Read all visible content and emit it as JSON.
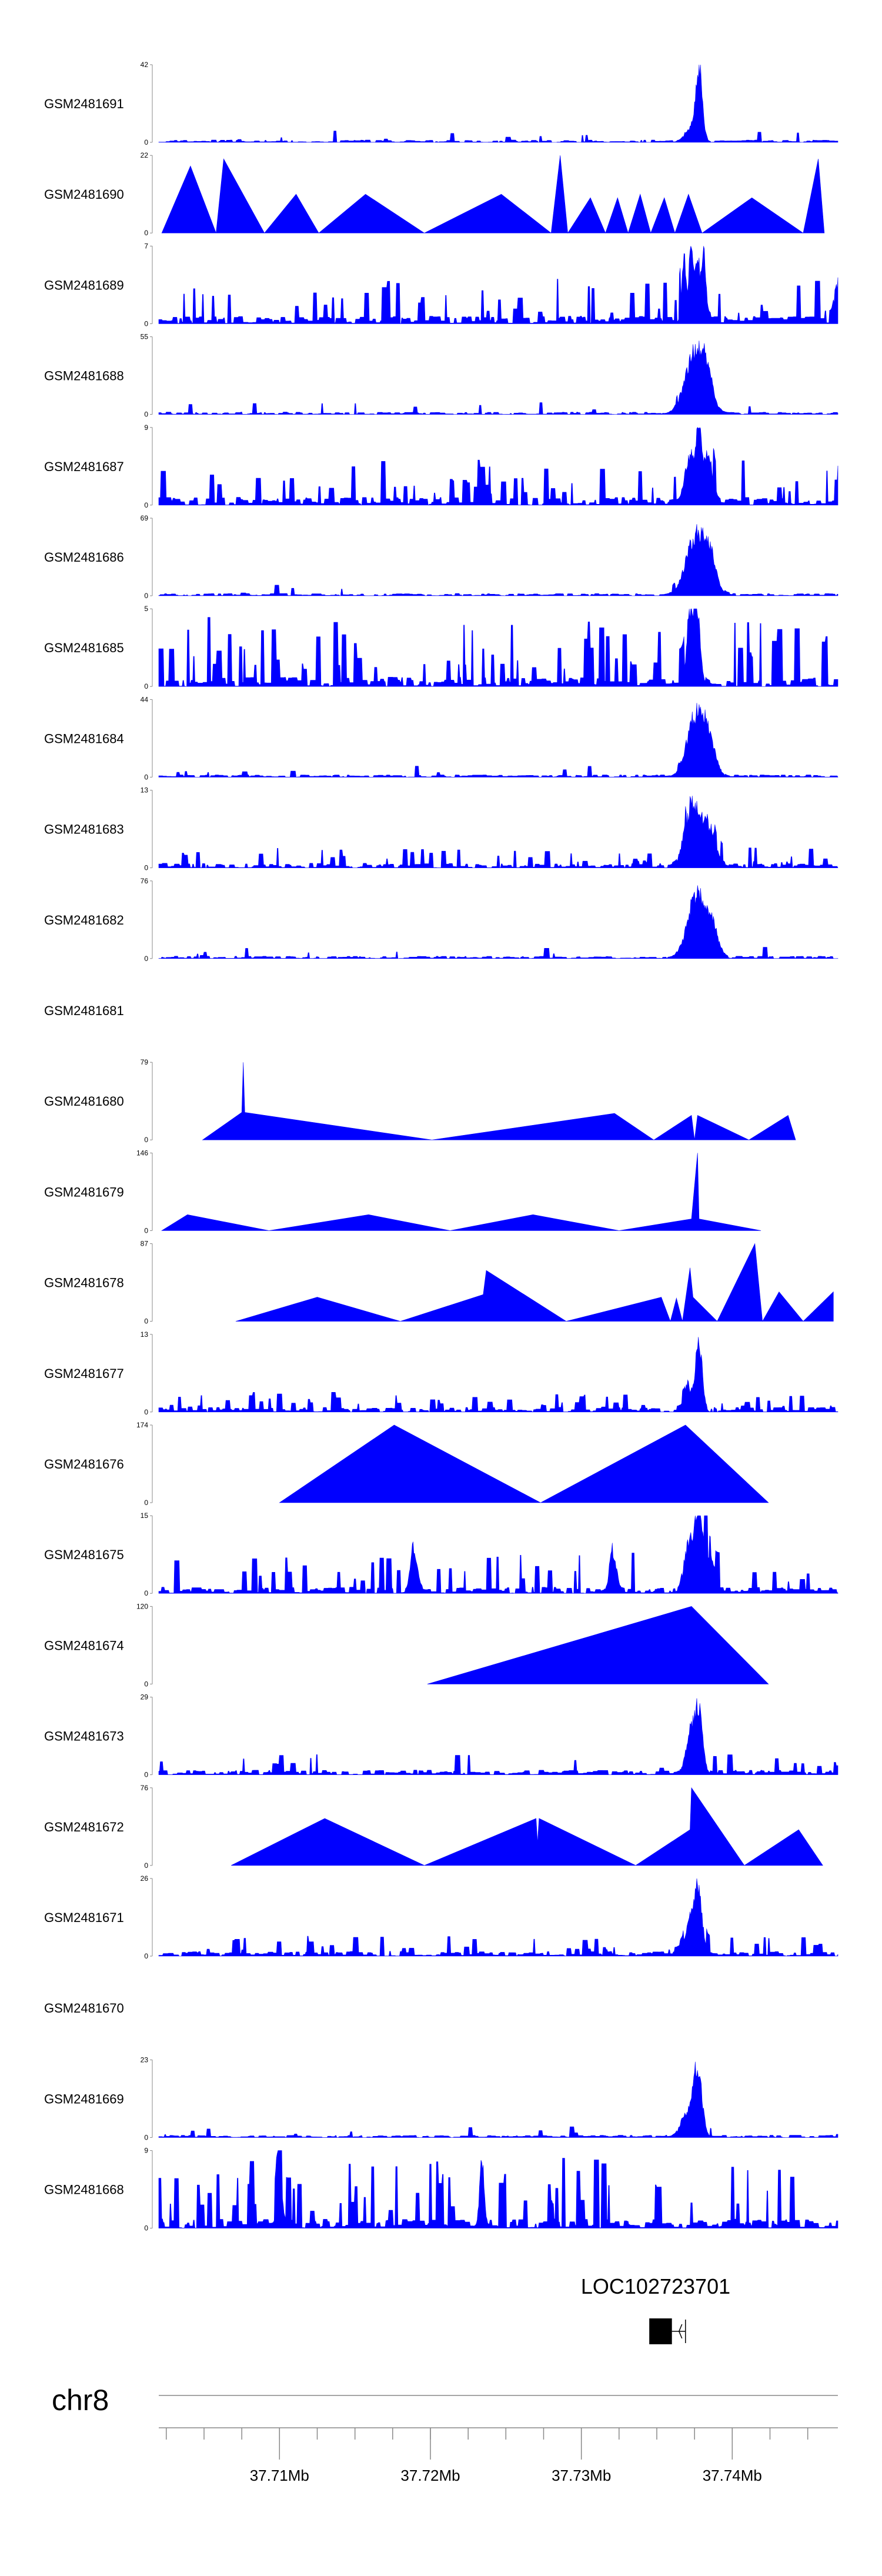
{
  "chart_data": {
    "type": "area",
    "genome_range": [
      37.702,
      37.747
    ],
    "colors": {
      "signal": "#0000ff",
      "axis": "#888888",
      "text": "#000000",
      "gene": "#000000"
    },
    "tracks": [
      {
        "name": "GSM2481691",
        "ymax": 42,
        "pattern": "sparse-low",
        "seed": 11,
        "peaks": [
          [
            37.7378,
            1.0,
            0.0003
          ],
          [
            37.7373,
            0.2,
            0.0006
          ]
        ]
      },
      {
        "name": "GSM2481690",
        "ymax": 22,
        "pattern": "tri",
        "seed": 12,
        "points": [
          [
            37.7022,
            0
          ],
          [
            37.7041,
            19
          ],
          [
            37.7058,
            0
          ],
          [
            37.7063,
            21
          ],
          [
            37.709,
            0
          ],
          [
            37.7111,
            11
          ],
          [
            37.7126,
            0
          ],
          [
            37.7157,
            11
          ],
          [
            37.7196,
            0
          ],
          [
            37.7247,
            11
          ],
          [
            37.728,
            0
          ],
          [
            37.7286,
            22
          ],
          [
            37.7291,
            0
          ],
          [
            37.7306,
            10
          ],
          [
            37.7316,
            0
          ],
          [
            37.7324,
            10
          ],
          [
            37.7331,
            0
          ],
          [
            37.7339,
            11
          ],
          [
            37.7346,
            0
          ],
          [
            37.7355,
            10
          ],
          [
            37.7362,
            0
          ],
          [
            37.7371,
            11
          ],
          [
            37.738,
            0
          ],
          [
            37.7413,
            10
          ],
          [
            37.7447,
            0
          ],
          [
            37.7457,
            21
          ],
          [
            37.7461,
            0
          ]
        ]
      },
      {
        "name": "GSM2481689",
        "ymax": 7,
        "pattern": "dense-mid",
        "seed": 13,
        "peaks": [
          [
            37.7373,
            7.0,
            0.0002
          ],
          [
            37.7377,
            6.3,
            0.0002
          ],
          [
            37.7381,
            6.0,
            0.0002
          ],
          [
            37.7368,
            6.2,
            0.0002
          ],
          [
            37.7469,
            3.5,
            0.0002
          ]
        ]
      },
      {
        "name": "GSM2481688",
        "ymax": 55,
        "pattern": "sparse-low",
        "seed": 14,
        "peaks": [
          [
            37.7375,
            0.86,
            0.0009
          ],
          [
            37.7383,
            0.45,
            0.0006
          ]
        ]
      },
      {
        "name": "GSM2481687",
        "ymax": 9,
        "pattern": "dense-mid",
        "seed": 15,
        "peaks": [
          [
            37.7378,
            9.0,
            0.0003
          ],
          [
            37.7372,
            6.5,
            0.0004
          ],
          [
            37.7384,
            6.0,
            0.0004
          ]
        ]
      },
      {
        "name": "GSM2481686",
        "ymax": 69,
        "pattern": "sparse-low",
        "seed": 16,
        "peaks": [
          [
            37.7376,
            0.87,
            0.0009
          ],
          [
            37.7385,
            0.45,
            0.0006
          ]
        ]
      },
      {
        "name": "GSM2481685",
        "ymax": 5,
        "pattern": "dense-high",
        "seed": 17,
        "peaks": [
          [
            37.7372,
            5.0,
            0.0003
          ],
          [
            37.7377,
            4.5,
            0.0003
          ]
        ]
      },
      {
        "name": "GSM2481684",
        "ymax": 44,
        "pattern": "sparse-low",
        "seed": 18,
        "peaks": [
          [
            37.7376,
            0.9,
            0.0008
          ],
          [
            37.7385,
            0.45,
            0.0006
          ]
        ]
      },
      {
        "name": "GSM2481683",
        "ymax": 13,
        "pattern": "dense-low",
        "seed": 19,
        "peaks": [
          [
            37.7374,
            0.95,
            0.0007
          ],
          [
            37.7385,
            0.55,
            0.0006
          ]
        ]
      },
      {
        "name": "GSM2481682",
        "ymax": 76,
        "pattern": "sparse-low",
        "seed": 20,
        "peaks": [
          [
            37.7376,
            0.93,
            0.0008
          ],
          [
            37.7386,
            0.45,
            0.0006
          ]
        ]
      },
      {
        "name": "GSM2481681",
        "ymax": null,
        "pattern": "empty"
      },
      {
        "name": "GSM2481680",
        "ymax": 79,
        "pattern": "tri",
        "seed": 21,
        "points": [
          [
            37.7049,
            0
          ],
          [
            37.7075,
            28
          ],
          [
            37.7076,
            79
          ],
          [
            37.7077,
            28
          ],
          [
            37.7201,
            0
          ],
          [
            37.7322,
            27
          ],
          [
            37.7348,
            0
          ],
          [
            37.7373,
            25
          ],
          [
            37.7375,
            0
          ],
          [
            37.7377,
            25
          ],
          [
            37.7411,
            0
          ],
          [
            37.7437,
            25
          ],
          [
            37.7442,
            0
          ]
        ]
      },
      {
        "name": "GSM2481679",
        "ymax": 146,
        "pattern": "tri",
        "seed": 22,
        "points": [
          [
            37.7022,
            0
          ],
          [
            37.7039,
            30
          ],
          [
            37.7093,
            0
          ],
          [
            37.7159,
            30
          ],
          [
            37.7213,
            0
          ],
          [
            37.7268,
            30
          ],
          [
            37.7325,
            0
          ],
          [
            37.7373,
            22
          ],
          [
            37.7377,
            146
          ],
          [
            37.7378,
            22
          ],
          [
            37.7419,
            0
          ]
        ]
      },
      {
        "name": "GSM2481678",
        "ymax": 87,
        "pattern": "tri",
        "seed": 23,
        "points": [
          [
            37.7071,
            0
          ],
          [
            37.7125,
            27
          ],
          [
            37.718,
            0
          ],
          [
            37.7235,
            30
          ],
          [
            37.7237,
            57
          ],
          [
            37.729,
            0
          ],
          [
            37.7353,
            27
          ],
          [
            37.7359,
            0
          ],
          [
            37.7363,
            26
          ],
          [
            37.7367,
            0
          ],
          [
            37.7372,
            60
          ],
          [
            37.7374,
            27
          ],
          [
            37.739,
            0
          ],
          [
            37.7415,
            87
          ],
          [
            37.742,
            0
          ],
          [
            37.7431,
            33
          ],
          [
            37.7447,
            0
          ],
          [
            37.7467,
            33
          ]
        ]
      },
      {
        "name": "GSM2481677",
        "ymax": 13,
        "pattern": "dense-low",
        "seed": 24,
        "peaks": [
          [
            37.7378,
            1.0,
            0.0003
          ],
          [
            37.7372,
            0.3,
            0.0004
          ]
        ]
      },
      {
        "name": "GSM2481676",
        "ymax": 174,
        "pattern": "tri",
        "seed": 25,
        "points": [
          [
            37.71,
            0
          ],
          [
            37.7176,
            174
          ],
          [
            37.7273,
            0
          ],
          [
            37.7369,
            174
          ],
          [
            37.7424,
            0
          ]
        ]
      },
      {
        "name": "GSM2481675",
        "ymax": 15,
        "pattern": "dense-mid-wide",
        "seed": 26,
        "peaks": [
          [
            37.7377,
            15.0,
            0.0003
          ],
          [
            37.7371,
            11.5,
            0.0004
          ],
          [
            37.7382,
            9.5,
            0.0004
          ],
          [
            37.7189,
            10.0,
            0.0003
          ],
          [
            37.7321,
            9.0,
            0.0003
          ]
        ]
      },
      {
        "name": "GSM2481674",
        "ymax": 120,
        "pattern": "tri",
        "seed": 27,
        "points": [
          [
            37.7198,
            0
          ],
          [
            37.7373,
            120
          ],
          [
            37.7424,
            0
          ]
        ]
      },
      {
        "name": "GSM2481673",
        "ymax": 29,
        "pattern": "dense-low",
        "seed": 28,
        "peaks": [
          [
            37.7377,
            1.0,
            0.0004
          ],
          [
            37.7371,
            0.35,
            0.0004
          ]
        ]
      },
      {
        "name": "GSM2481672",
        "ymax": 76,
        "pattern": "tri",
        "seed": 29,
        "points": [
          [
            37.7068,
            0
          ],
          [
            37.713,
            46
          ],
          [
            37.7196,
            0
          ],
          [
            37.727,
            46
          ],
          [
            37.7271,
            22
          ],
          [
            37.7272,
            46
          ],
          [
            37.7336,
            0
          ],
          [
            37.7372,
            35
          ],
          [
            37.7373,
            76
          ],
          [
            37.7408,
            0
          ],
          [
            37.7444,
            35
          ],
          [
            37.746,
            0
          ]
        ]
      },
      {
        "name": "GSM2481671",
        "ymax": 26,
        "pattern": "dense-low",
        "seed": 30,
        "peaks": [
          [
            37.7377,
            1.0,
            0.0004
          ],
          [
            37.7371,
            0.35,
            0.0004
          ]
        ]
      },
      {
        "name": "GSM2481670",
        "ymax": null,
        "pattern": "empty"
      },
      {
        "name": "GSM2481669",
        "ymax": 23,
        "pattern": "sparse-low",
        "seed": 31,
        "peaks": [
          [
            37.7377,
            1.0,
            0.0004
          ],
          [
            37.737,
            0.3,
            0.0006
          ]
        ]
      },
      {
        "name": "GSM2481668",
        "ymax": 9,
        "pattern": "dense-high",
        "seed": 32,
        "peaks": [
          [
            37.71,
            9.0,
            0.0002
          ],
          [
            37.7234,
            9.0,
            0.0002
          ]
        ]
      }
    ],
    "gene": {
      "name": "LOC102723701",
      "start": 37.7345,
      "end": 37.736,
      "intron_end": 37.7369,
      "strand": "-"
    },
    "chromosome": "chr8",
    "axis_ticks": [
      37.71,
      37.72,
      37.73,
      37.74
    ],
    "axis_tick_labels": [
      "37.71Mb",
      "37.72Mb",
      "37.73Mb",
      "37.74Mb"
    ],
    "minor_tick_step": 0.0025
  }
}
